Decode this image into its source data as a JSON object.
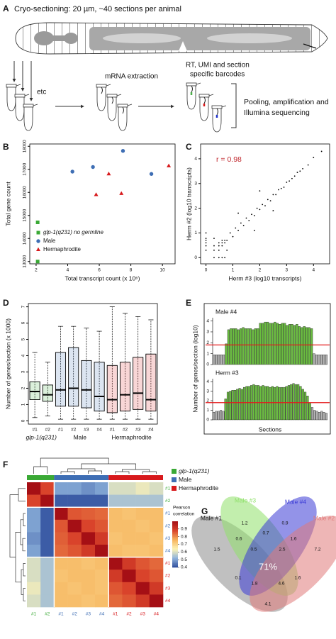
{
  "diagram": {
    "panel": "A",
    "title": "Cryo-sectioning: 20 µm, ~40 sections per animal",
    "step_label": "etc",
    "steps": [
      "mRNA extraction",
      "RT, UMI and section",
      "specific barcodes"
    ],
    "final_step": [
      "Pooling, amplification and",
      "Illumina sequencing"
    ]
  },
  "chart_data": [
    {
      "panel": "B",
      "type": "scatter",
      "xlabel": "Total transcript count (x 10⁶)",
      "ylabel": "Total gene count",
      "xlim": [
        1.6,
        10.8
      ],
      "ylim": [
        12900,
        18100
      ],
      "xticks": [
        2,
        4,
        6,
        8,
        10
      ],
      "yticks": [
        13000,
        14000,
        15000,
        16000,
        17000,
        18000
      ],
      "legend": "lower left",
      "series": [
        {
          "name": "glp-1(q231) no germline",
          "color": "#3aa935",
          "marker": "square",
          "x": [
            2.1,
            2.1
          ],
          "values": [
            14700,
            13000
          ]
        },
        {
          "name": "Male",
          "color": "#3e6eb4",
          "marker": "circle",
          "x": [
            4.3,
            5.6,
            7.5,
            9.3
          ],
          "values": [
            16900,
            17100,
            17800,
            16800
          ]
        },
        {
          "name": "Hermaphrodite",
          "color": "#d7191c",
          "marker": "triangle",
          "x": [
            5.8,
            6.6,
            7.4,
            10.4
          ],
          "values": [
            15900,
            16800,
            15950,
            17150
          ]
        }
      ]
    },
    {
      "panel": "C",
      "type": "scatter",
      "xlabel": "Herm #3 (log10 transcripts)",
      "ylabel": "Herm #2 (log10 transcripts)",
      "annotation": "r = 0.98",
      "annotation_color": "#c0272d",
      "xlim": [
        -0.2,
        4.6
      ],
      "ylim": [
        -0.25,
        4.6
      ],
      "xticks": [
        0,
        1,
        2,
        3,
        4
      ],
      "yticks": [
        0,
        1,
        2,
        3,
        4
      ],
      "series": [
        {
          "color": "#000000",
          "marker": "dot",
          "x": [
            0,
            0,
            0,
            0,
            0,
            0,
            0.3,
            0.48,
            0.6,
            0.7,
            0.3,
            0.3,
            0.48,
            0.48,
            0.48,
            0.6,
            0.6,
            0.6,
            0.7,
            0.7,
            0.78,
            0.3,
            0.78,
            0.9,
            1.0,
            1.1,
            1.2,
            1.3,
            1.4,
            1.5,
            1.6,
            1.7,
            1.8,
            1.9,
            2.0,
            2.1,
            2.2,
            2.3,
            2.4,
            2.5,
            2.6,
            2.7,
            2.8,
            2.9,
            3.0,
            3.1,
            3.2,
            3.3,
            3.4,
            3.5,
            3.6,
            3.8,
            4.0,
            4.3,
            1.2,
            1.8,
            2.5,
            2.0
          ],
          "values": [
            0.3,
            0.48,
            0.6,
            0.7,
            0.78,
            1.0,
            0,
            0,
            0,
            0,
            0.3,
            0.48,
            0.3,
            0.48,
            0.6,
            0.48,
            0.6,
            0.7,
            0.6,
            0.7,
            0.7,
            0.78,
            0.3,
            1.0,
            0.85,
            1.2,
            1.1,
            1.4,
            1.3,
            1.6,
            1.5,
            1.75,
            1.7,
            2.0,
            1.95,
            2.15,
            2.1,
            2.35,
            2.3,
            2.55,
            2.55,
            2.75,
            2.8,
            2.85,
            3.05,
            3.1,
            3.2,
            3.3,
            3.45,
            3.5,
            3.6,
            3.75,
            4.05,
            4.3,
            1.8,
            1.1,
            1.9,
            2.7
          ]
        }
      ]
    },
    {
      "panel": "D",
      "type": "box",
      "ylabel": "Number of genes/section (x 1000)",
      "ylim": [
        -0.2,
        7.2
      ],
      "yticks": [
        0,
        1,
        2,
        3,
        4,
        5,
        6,
        7
      ],
      "series": [
        {
          "name": "glp-1(q231)",
          "color": "#3aa935",
          "categories": [
            "#1",
            "#2"
          ],
          "boxes": [
            {
              "min": 0.2,
              "q1": 1.3,
              "median": 1.8,
              "q3": 2.4,
              "max": 4.2
            },
            {
              "min": 0.3,
              "q1": 1.2,
              "median": 1.6,
              "q3": 2.2,
              "max": 3.6
            }
          ]
        },
        {
          "name": "Male",
          "color": "#3e6eb4",
          "categories": [
            "#1",
            "#2",
            "#3",
            "#4"
          ],
          "boxes": [
            {
              "min": 0.1,
              "q1": 0.9,
              "median": 1.9,
              "q3": 4.2,
              "max": 5.8
            },
            {
              "min": 0.1,
              "q1": 0.9,
              "median": 2.0,
              "q3": 4.5,
              "max": 5.8
            },
            {
              "min": 0.1,
              "q1": 0.8,
              "median": 1.9,
              "q3": 3.7,
              "max": 5.7
            },
            {
              "min": 0.1,
              "q1": 0.6,
              "median": 1.5,
              "q3": 3.6,
              "max": 5.5
            }
          ]
        },
        {
          "name": "Hermaphrodite",
          "color": "#d7191c",
          "categories": [
            "#1",
            "#2",
            "#3",
            "#4"
          ],
          "boxes": [
            {
              "min": 0.1,
              "q1": 0.5,
              "median": 1.3,
              "q3": 3.4,
              "max": 7.0
            },
            {
              "min": 0.1,
              "q1": 0.6,
              "median": 1.6,
              "q3": 3.6,
              "max": 6.6
            },
            {
              "min": 0.1,
              "q1": 0.7,
              "median": 1.7,
              "q3": 3.9,
              "max": 6.4
            },
            {
              "min": 0.1,
              "q1": 0.6,
              "median": 1.3,
              "q3": 4.1,
              "max": 6.2
            }
          ]
        }
      ]
    },
    {
      "panel": "E",
      "type": "bar",
      "ylabel": "Number of genes/section (log10)",
      "xlabel": "Sections",
      "ylim": [
        0,
        4.3
      ],
      "yticks": [
        0,
        1,
        2,
        3,
        4
      ],
      "threshold": 1.8,
      "threshold_color": "#e41a1c",
      "color": "#6abf3f",
      "below_color": "#b3b3b3",
      "series": [
        {
          "name": "Male #4",
          "values": [
            0.9,
            0.9,
            0.9,
            0.9,
            0.9,
            1.9,
            3.2,
            3.3,
            3.3,
            3.3,
            3.2,
            3.3,
            3.4,
            3.3,
            3.3,
            3.3,
            3.2,
            3.3,
            3.3,
            3.8,
            3.8,
            3.9,
            3.9,
            3.8,
            3.8,
            3.9,
            3.8,
            3.7,
            3.8,
            3.8,
            3.6,
            3.7,
            3.7,
            3.6,
            3.7,
            3.5,
            3.4,
            3.5,
            3.4,
            3.4,
            3.3,
            1.0,
            0.9,
            0.9,
            0.9,
            0.9,
            0.9
          ]
        },
        {
          "name": "Herm #3",
          "values": [
            0.8,
            0.9,
            0.9,
            1.0,
            0.9,
            2.2,
            2.9,
            3.0,
            3.1,
            3.1,
            3.2,
            3.3,
            3.2,
            3.4,
            3.5,
            3.5,
            3.6,
            3.7,
            3.6,
            3.6,
            3.5,
            3.6,
            3.5,
            3.5,
            3.4,
            3.5,
            3.4,
            3.5,
            3.4,
            3.4,
            3.4,
            3.5,
            3.6,
            3.7,
            3.8,
            3.7,
            3.7,
            3.5,
            3.2,
            2.9,
            2.5,
            1.8,
            1.3,
            1.0,
            0.9,
            0.8,
            0.9,
            0.8,
            0.7
          ]
        }
      ]
    },
    {
      "panel": "F",
      "type": "heatmap",
      "groups": [
        {
          "name": "glp-1(q231)",
          "color": "#3aa935",
          "labels": [
            "#1",
            "#2"
          ]
        },
        {
          "name": "Male",
          "color": "#3e6eb4",
          "labels": [
            "#1",
            "#2",
            "#3",
            "#4"
          ]
        },
        {
          "name": "Hermaphrodite",
          "color": "#d7191c",
          "labels": [
            "#1",
            "#2",
            "#3",
            "#4"
          ]
        }
      ],
      "values": [
        [
          1,
          0.88,
          0.5,
          0.5,
          0.48,
          0.5,
          0.6,
          0.6,
          0.62,
          0.6
        ],
        [
          0.88,
          1,
          0.42,
          0.42,
          0.42,
          0.42,
          0.55,
          0.55,
          0.55,
          0.55
        ],
        [
          0.5,
          0.42,
          1,
          0.86,
          0.85,
          0.84,
          0.74,
          0.73,
          0.74,
          0.74
        ],
        [
          0.5,
          0.42,
          0.86,
          1,
          0.88,
          0.86,
          0.74,
          0.74,
          0.73,
          0.74
        ],
        [
          0.48,
          0.42,
          0.85,
          0.88,
          1,
          0.9,
          0.73,
          0.74,
          0.74,
          0.73
        ],
        [
          0.5,
          0.42,
          0.84,
          0.86,
          0.9,
          1,
          0.74,
          0.73,
          0.73,
          0.74
        ],
        [
          0.6,
          0.55,
          0.74,
          0.74,
          0.73,
          0.74,
          1,
          0.9,
          0.86,
          0.84
        ],
        [
          0.6,
          0.55,
          0.73,
          0.74,
          0.74,
          0.73,
          0.9,
          1,
          0.88,
          0.86
        ],
        [
          0.62,
          0.55,
          0.74,
          0.73,
          0.74,
          0.73,
          0.86,
          0.88,
          1,
          0.9
        ],
        [
          0.6,
          0.55,
          0.74,
          0.74,
          0.73,
          0.74,
          0.84,
          0.86,
          0.9,
          1
        ]
      ],
      "zlim": [
        0.4,
        1.0
      ],
      "colors": [
        "#2c4b9b",
        "#8fb3dc",
        "#fdf3b5",
        "#f6b35c",
        "#d9432b",
        "#a50f15"
      ],
      "colorbar_label": [
        "Pearson",
        "correlation"
      ],
      "colorbar_ticks": [
        0.4,
        0.5,
        0.6,
        0.7,
        0.8,
        0.9
      ]
    },
    {
      "panel": "G",
      "type": "venn",
      "sets": [
        {
          "name": "Male #1",
          "color": "#8c8c8c"
        },
        {
          "name": "Male #3",
          "color": "#8fe06a"
        },
        {
          "name": "Male #4",
          "color": "#3b3bd6"
        },
        {
          "name": "Male #2",
          "color": "#e07a7a"
        }
      ],
      "values": [
        1.5,
        1.2,
        0.9,
        7.2,
        0.6,
        0.7,
        1.6,
        0.5,
        2.5,
        0.1,
        71,
        1.6,
        1.8,
        4.6,
        4.1
      ],
      "value_labels": [
        "1.5",
        "1.2",
        "0.9",
        "7.2",
        "0.6",
        "0.7",
        "1.6",
        "0.5",
        "2.5",
        "0.1",
        "71%",
        "1.6",
        "1.8",
        "4.6",
        "4.1"
      ]
    }
  ]
}
